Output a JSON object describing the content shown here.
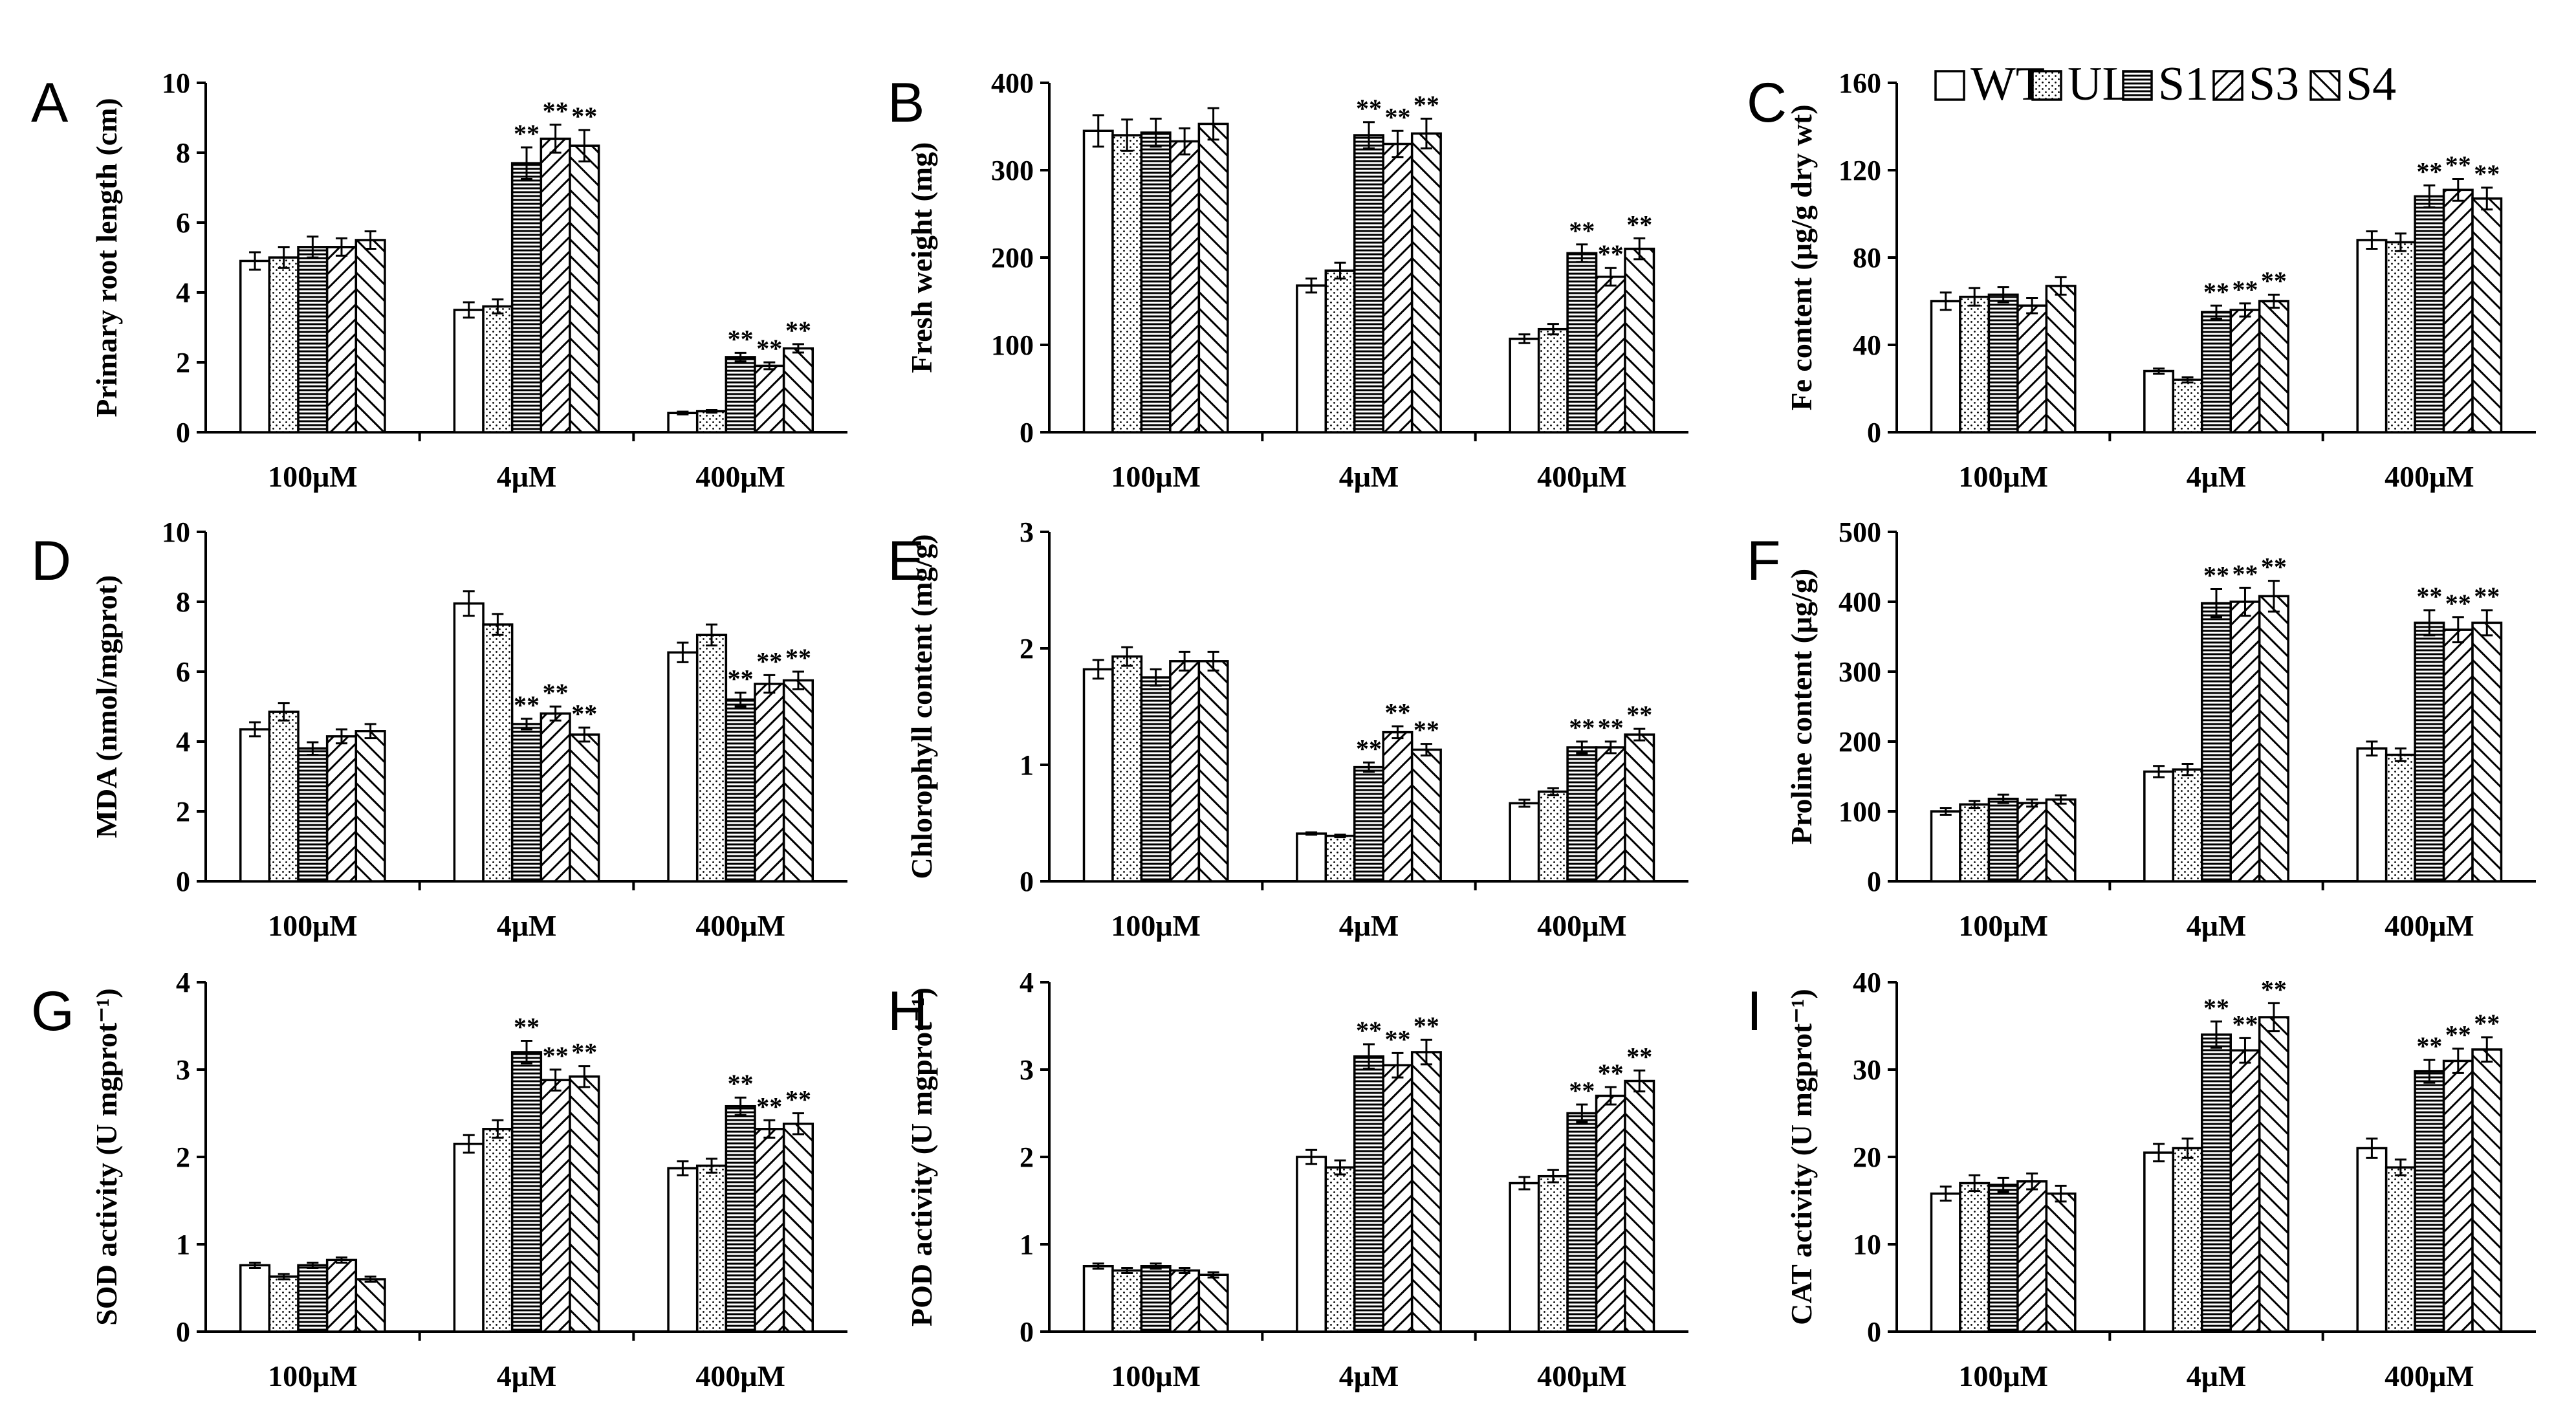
{
  "legend": {
    "position": "top-right",
    "entries": [
      {
        "name": "WT",
        "pattern": "blank"
      },
      {
        "name": "UL",
        "pattern": "dots"
      },
      {
        "name": "S1",
        "pattern": "horizontal"
      },
      {
        "name": "S3",
        "pattern": "back-diagonal"
      },
      {
        "name": "S4",
        "pattern": "forward-diagonal"
      }
    ]
  },
  "chart_data": [
    {
      "panel": "A",
      "type": "bar",
      "ylabel": "Primary root length (cm)",
      "ylim": [
        0,
        10
      ],
      "yticks": [
        "0",
        "2",
        "4",
        "6",
        "8",
        "10"
      ],
      "categories": [
        "100μM",
        "4μM",
        "400μM"
      ],
      "series": [
        {
          "name": "WT",
          "values": [
            4.9,
            3.5,
            0.55
          ],
          "errors": [
            0.25,
            0.22,
            0.04
          ],
          "sig": [
            "",
            "",
            ""
          ]
        },
        {
          "name": "UL",
          "values": [
            5.0,
            3.6,
            0.6
          ],
          "errors": [
            0.3,
            0.2,
            0.04
          ],
          "sig": [
            "",
            "",
            ""
          ]
        },
        {
          "name": "S1",
          "values": [
            5.3,
            7.7,
            2.15
          ],
          "errors": [
            0.3,
            0.45,
            0.12
          ],
          "sig": [
            "",
            "**",
            "**"
          ]
        },
        {
          "name": "S3",
          "values": [
            5.3,
            8.4,
            1.9
          ],
          "errors": [
            0.25,
            0.4,
            0.1
          ],
          "sig": [
            "",
            "**",
            "**"
          ]
        },
        {
          "name": "S4",
          "values": [
            5.5,
            8.2,
            2.4
          ],
          "errors": [
            0.25,
            0.45,
            0.12
          ],
          "sig": [
            "",
            "**",
            "**"
          ]
        }
      ]
    },
    {
      "panel": "B",
      "type": "bar",
      "ylabel": "Fresh weight (mg)",
      "ylim": [
        0,
        400
      ],
      "yticks": [
        "0",
        "100",
        "200",
        "300",
        "400"
      ],
      "categories": [
        "100μM",
        "4μM",
        "400μM"
      ],
      "series": [
        {
          "name": "WT",
          "values": [
            345,
            168,
            107
          ],
          "errors": [
            18,
            8,
            5
          ],
          "sig": [
            "",
            "",
            ""
          ]
        },
        {
          "name": "UL",
          "values": [
            340,
            185,
            118
          ],
          "errors": [
            18,
            9,
            6
          ],
          "sig": [
            "",
            "",
            ""
          ]
        },
        {
          "name": "S1",
          "values": [
            343,
            340,
            205
          ],
          "errors": [
            16,
            15,
            10
          ],
          "sig": [
            "",
            "**",
            "**"
          ]
        },
        {
          "name": "S3",
          "values": [
            333,
            330,
            178
          ],
          "errors": [
            15,
            15,
            10
          ],
          "sig": [
            "",
            "**",
            "**"
          ]
        },
        {
          "name": "S4",
          "values": [
            353,
            342,
            210
          ],
          "errors": [
            18,
            17,
            12
          ],
          "sig": [
            "",
            "**",
            "**"
          ]
        }
      ]
    },
    {
      "panel": "C",
      "type": "bar",
      "ylabel": "Fe content (μg/g dry wt)",
      "ylim": [
        0,
        160
      ],
      "yticks": [
        "0",
        "40",
        "80",
        "120",
        "160"
      ],
      "categories": [
        "100μM",
        "4μM",
        "400μM"
      ],
      "series": [
        {
          "name": "WT",
          "values": [
            60,
            28,
            88
          ],
          "errors": [
            4,
            1.2,
            4
          ],
          "sig": [
            "",
            "",
            ""
          ]
        },
        {
          "name": "UL",
          "values": [
            62,
            24,
            87
          ],
          "errors": [
            4,
            1.2,
            4
          ],
          "sig": [
            "",
            "",
            ""
          ]
        },
        {
          "name": "S1",
          "values": [
            63,
            55,
            108
          ],
          "errors": [
            3.5,
            3,
            5
          ],
          "sig": [
            "",
            "**",
            "**"
          ]
        },
        {
          "name": "S3",
          "values": [
            58,
            56,
            111
          ],
          "errors": [
            3.5,
            3,
            5
          ],
          "sig": [
            "",
            "**",
            "**"
          ]
        },
        {
          "name": "S4",
          "values": [
            67,
            60,
            107
          ],
          "errors": [
            4,
            3,
            5
          ],
          "sig": [
            "",
            "**",
            "**"
          ]
        }
      ]
    },
    {
      "panel": "D",
      "type": "bar",
      "ylabel": "MDA  (nmol/mgprot)",
      "ylim": [
        0,
        10
      ],
      "yticks": [
        "0",
        "2",
        "4",
        "6",
        "8",
        "10"
      ],
      "categories": [
        "100μM",
        "4μM",
        "400μM"
      ],
      "series": [
        {
          "name": "WT",
          "values": [
            4.35,
            7.95,
            6.55
          ],
          "errors": [
            0.2,
            0.35,
            0.28
          ],
          "sig": [
            "",
            "",
            ""
          ]
        },
        {
          "name": "UL",
          "values": [
            4.85,
            7.35,
            7.05
          ],
          "errors": [
            0.25,
            0.3,
            0.3
          ],
          "sig": [
            "",
            "",
            ""
          ]
        },
        {
          "name": "S1",
          "values": [
            3.8,
            4.5,
            5.2
          ],
          "errors": [
            0.18,
            0.15,
            0.2
          ],
          "sig": [
            "",
            "**",
            "**"
          ]
        },
        {
          "name": "S3",
          "values": [
            4.15,
            4.8,
            5.65
          ],
          "errors": [
            0.2,
            0.2,
            0.25
          ],
          "sig": [
            "",
            "**",
            "**"
          ]
        },
        {
          "name": "S4",
          "values": [
            4.3,
            4.2,
            5.75
          ],
          "errors": [
            0.2,
            0.2,
            0.25
          ],
          "sig": [
            "",
            "**",
            "**"
          ]
        }
      ]
    },
    {
      "panel": "E",
      "type": "bar",
      "ylabel": "Chlorophyll content (mg/g)",
      "ylim": [
        0,
        3
      ],
      "yticks": [
        "0",
        "1",
        "2",
        "3"
      ],
      "categories": [
        "100μM",
        "4μM",
        "400μM"
      ],
      "series": [
        {
          "name": "WT",
          "values": [
            1.82,
            0.41,
            0.67
          ],
          "errors": [
            0.08,
            0.01,
            0.03
          ],
          "sig": [
            "",
            "",
            ""
          ]
        },
        {
          "name": "UL",
          "values": [
            1.93,
            0.39,
            0.77
          ],
          "errors": [
            0.08,
            0.01,
            0.03
          ],
          "sig": [
            "",
            "",
            ""
          ]
        },
        {
          "name": "S1",
          "values": [
            1.75,
            0.98,
            1.15
          ],
          "errors": [
            0.07,
            0.04,
            0.05
          ],
          "sig": [
            "",
            "**",
            "**"
          ]
        },
        {
          "name": "S3",
          "values": [
            1.89,
            1.28,
            1.15
          ],
          "errors": [
            0.08,
            0.05,
            0.05
          ],
          "sig": [
            "",
            "**",
            "**"
          ]
        },
        {
          "name": "S4",
          "values": [
            1.89,
            1.13,
            1.26
          ],
          "errors": [
            0.08,
            0.05,
            0.05
          ],
          "sig": [
            "",
            "**",
            "**"
          ]
        }
      ]
    },
    {
      "panel": "F",
      "type": "bar",
      "ylabel": "Proline content (μg/g)",
      "ylim": [
        0,
        500
      ],
      "yticks": [
        "0",
        "100",
        "200",
        "300",
        "400",
        "500"
      ],
      "categories": [
        "100μM",
        "4μM",
        "400μM"
      ],
      "series": [
        {
          "name": "WT",
          "values": [
            100,
            157,
            190
          ],
          "errors": [
            5,
            8,
            10
          ],
          "sig": [
            "",
            "",
            ""
          ]
        },
        {
          "name": "UL",
          "values": [
            110,
            160,
            181
          ],
          "errors": [
            5,
            8,
            9
          ],
          "sig": [
            "",
            "",
            ""
          ]
        },
        {
          "name": "S1",
          "values": [
            118,
            398,
            370
          ],
          "errors": [
            6,
            20,
            18
          ],
          "sig": [
            "",
            "**",
            "**"
          ]
        },
        {
          "name": "S3",
          "values": [
            112,
            400,
            360
          ],
          "errors": [
            5,
            20,
            18
          ],
          "sig": [
            "",
            "**",
            "**"
          ]
        },
        {
          "name": "S4",
          "values": [
            117,
            408,
            370
          ],
          "errors": [
            6,
            22,
            18
          ],
          "sig": [
            "",
            "**",
            "**"
          ]
        }
      ]
    },
    {
      "panel": "G",
      "type": "bar",
      "ylabel": "SOD activity (U mgprot⁻¹)",
      "ylim": [
        0,
        4
      ],
      "yticks": [
        "0",
        "1",
        "2",
        "3",
        "4"
      ],
      "categories": [
        "100μM",
        "4μM",
        "400μM"
      ],
      "series": [
        {
          "name": "WT",
          "values": [
            0.76,
            2.15,
            1.87
          ],
          "errors": [
            0.03,
            0.1,
            0.08
          ],
          "sig": [
            "",
            "",
            ""
          ]
        },
        {
          "name": "UL",
          "values": [
            0.63,
            2.32,
            1.9
          ],
          "errors": [
            0.03,
            0.1,
            0.08
          ],
          "sig": [
            "",
            "",
            ""
          ]
        },
        {
          "name": "S1",
          "values": [
            0.76,
            3.2,
            2.58
          ],
          "errors": [
            0.03,
            0.13,
            0.1
          ],
          "sig": [
            "",
            "**",
            "**"
          ]
        },
        {
          "name": "S3",
          "values": [
            0.82,
            2.88,
            2.32
          ],
          "errors": [
            0.03,
            0.12,
            0.1
          ],
          "sig": [
            "",
            "**",
            "**"
          ]
        },
        {
          "name": "S4",
          "values": [
            0.6,
            2.92,
            2.38
          ],
          "errors": [
            0.03,
            0.12,
            0.12
          ],
          "sig": [
            "",
            "**",
            "**"
          ]
        }
      ]
    },
    {
      "panel": "H",
      "type": "bar",
      "ylabel": "POD activity (U mgprot⁻¹)",
      "ylim": [
        0,
        4
      ],
      "yticks": [
        "0",
        "1",
        "2",
        "3",
        "4"
      ],
      "categories": [
        "100μM",
        "4μM",
        "400μM"
      ],
      "series": [
        {
          "name": "WT",
          "values": [
            0.75,
            2.0,
            1.7
          ],
          "errors": [
            0.03,
            0.08,
            0.07
          ],
          "sig": [
            "",
            "",
            ""
          ]
        },
        {
          "name": "UL",
          "values": [
            0.7,
            1.88,
            1.78
          ],
          "errors": [
            0.03,
            0.08,
            0.07
          ],
          "sig": [
            "",
            "",
            ""
          ]
        },
        {
          "name": "S1",
          "values": [
            0.75,
            3.15,
            2.5
          ],
          "errors": [
            0.03,
            0.14,
            0.1
          ],
          "sig": [
            "",
            "**",
            "**"
          ]
        },
        {
          "name": "S3",
          "values": [
            0.7,
            3.05,
            2.7
          ],
          "errors": [
            0.03,
            0.14,
            0.1
          ],
          "sig": [
            "",
            "**",
            "**"
          ]
        },
        {
          "name": "S4",
          "values": [
            0.65,
            3.2,
            2.87
          ],
          "errors": [
            0.03,
            0.14,
            0.12
          ],
          "sig": [
            "",
            "**",
            "**"
          ]
        }
      ]
    },
    {
      "panel": "I",
      "type": "bar",
      "ylabel": "CAT activity (U mgprot⁻¹)",
      "ylim": [
        0,
        40
      ],
      "yticks": [
        "0",
        "10",
        "20",
        "30",
        "40"
      ],
      "categories": [
        "100μM",
        "4μM",
        "400μM"
      ],
      "series": [
        {
          "name": "WT",
          "values": [
            15.8,
            20.5,
            21.0
          ],
          "errors": [
            0.8,
            1.0,
            1.1
          ],
          "sig": [
            "",
            "",
            ""
          ]
        },
        {
          "name": "UL",
          "values": [
            17.0,
            21.0,
            18.8
          ],
          "errors": [
            0.9,
            1.1,
            0.9
          ],
          "sig": [
            "",
            "",
            ""
          ]
        },
        {
          "name": "S1",
          "values": [
            16.8,
            34.0,
            29.8
          ],
          "errors": [
            0.8,
            1.5,
            1.3
          ],
          "sig": [
            "",
            "**",
            "**"
          ]
        },
        {
          "name": "S3",
          "values": [
            17.2,
            32.2,
            31.0
          ],
          "errors": [
            0.9,
            1.4,
            1.4
          ],
          "sig": [
            "",
            "**",
            "**"
          ]
        },
        {
          "name": "S4",
          "values": [
            15.8,
            36.0,
            32.3
          ],
          "errors": [
            0.9,
            1.6,
            1.4
          ],
          "sig": [
            "",
            "**",
            "**"
          ]
        }
      ]
    }
  ]
}
